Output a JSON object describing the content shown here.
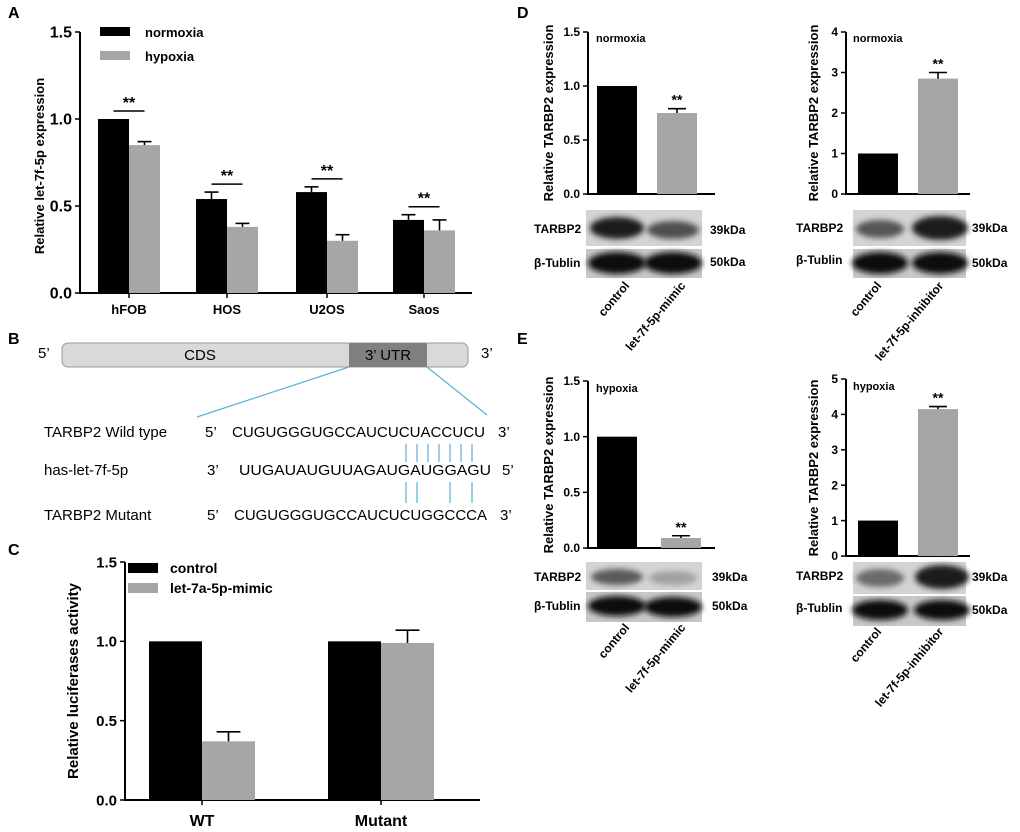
{
  "colors": {
    "black_bar": "#000000",
    "gray_bar": "#a6a6a6",
    "guide_line": "#5aaed8",
    "gene_bar": "#d9d9d9",
    "utr_bar": "#808080"
  },
  "panels": {
    "A": {
      "letter": "A",
      "legend": [
        "normoxia",
        "hypoxia"
      ]
    },
    "B": {
      "letter": "B",
      "five_prime": "5’",
      "three_prime": "3’",
      "cds_label": "CDS",
      "utr_label": "3’ UTR",
      "row1_label": "TARBP2 Wild type",
      "row1_5": "5’",
      "row1_seq": "CUGUGGGUGCCAUCUCUACCUCU",
      "row1_3": "3’",
      "row2_label": "has-let-7f-5p",
      "row2_3": "3’",
      "row2_seq": "UUGAUAUGUUAGAUGAUGGAGU",
      "row2_5": "5’",
      "row3_label": "TARBP2 Mutant",
      "row3_5": "5’",
      "row3_seq": "CUGUGGGUGCCAUCUCUGGCCCA",
      "row3_3": "3’"
    },
    "C": {
      "letter": "C",
      "legend": [
        "control",
        "let-7a-5p-mimic"
      ]
    },
    "D": {
      "letter": "D"
    },
    "E": {
      "letter": "E"
    }
  },
  "blot_labels": {
    "tarbp2": "TARBP2",
    "tublin": "β-Tublin",
    "kda39": "39kDa",
    "kda50": "50kDa"
  },
  "chart_data": [
    {
      "id": "A",
      "type": "bar",
      "ylabel": "Relative let-7f-5p expression",
      "ylim": [
        0,
        1.5
      ],
      "yticks": [
        "0.0",
        "0.5",
        "1.0",
        "1.5"
      ],
      "categories": [
        "hFOB",
        "HOS",
        "U2OS",
        "Saos"
      ],
      "series": [
        {
          "name": "normoxia",
          "values": [
            1.0,
            0.54,
            0.58,
            0.42
          ],
          "errors": [
            0,
            0.04,
            0.03,
            0.03
          ]
        },
        {
          "name": "hypoxia",
          "values": [
            0.85,
            0.38,
            0.3,
            0.36
          ],
          "errors": [
            0.02,
            0.02,
            0.035,
            0.06
          ]
        }
      ],
      "annotations": [
        "**",
        "**",
        "**",
        "**"
      ]
    },
    {
      "id": "C",
      "type": "bar",
      "ylabel": "Relative luciferases activity",
      "ylim": [
        0,
        1.5
      ],
      "yticks": [
        "0.0",
        "0.5",
        "1.0",
        "1.5"
      ],
      "categories": [
        "WT",
        "Mutant"
      ],
      "series": [
        {
          "name": "control",
          "values": [
            1.0,
            1.0
          ],
          "errors": [
            0,
            0
          ]
        },
        {
          "name": "let-7a-5p-mimic",
          "values": [
            0.37,
            0.99
          ],
          "errors": [
            0.06,
            0.08
          ]
        }
      ]
    },
    {
      "id": "D1",
      "type": "bar",
      "condition": "normoxia",
      "ylabel": "Relative TARBP2 expression",
      "ylim": [
        0,
        1.5
      ],
      "yticks": [
        "0.0",
        "0.5",
        "1.0",
        "1.5"
      ],
      "categories": [
        "control",
        "let-7f-5p-mimic"
      ],
      "values": [
        1.0,
        0.75
      ],
      "errors": [
        0,
        0.04
      ],
      "annotations": [
        "",
        "**"
      ]
    },
    {
      "id": "D2",
      "type": "bar",
      "condition": "normoxia",
      "ylabel": "Relative TARBP2 expression",
      "ylim": [
        0,
        4
      ],
      "yticks": [
        "0",
        "1",
        "2",
        "3",
        "4"
      ],
      "categories": [
        "control",
        "let-7f-5p-inhibitor"
      ],
      "values": [
        1.0,
        2.85
      ],
      "errors": [
        0,
        0.15
      ],
      "annotations": [
        "",
        "**"
      ]
    },
    {
      "id": "E1",
      "type": "bar",
      "condition": "hypoxia",
      "ylabel": "Relative TARBP2 expression",
      "ylim": [
        0,
        1.5
      ],
      "yticks": [
        "0.0",
        "0.5",
        "1.0",
        "1.5"
      ],
      "categories": [
        "control",
        "let-7f-5p-mimic"
      ],
      "values": [
        1.0,
        0.09
      ],
      "errors": [
        0,
        0.02
      ],
      "annotations": [
        "",
        "**"
      ]
    },
    {
      "id": "E2",
      "type": "bar",
      "condition": "hypoxia",
      "ylabel": "Relative TARBP2 expression",
      "ylim": [
        0,
        5
      ],
      "yticks": [
        "0",
        "1",
        "2",
        "3",
        "4",
        "5"
      ],
      "categories": [
        "control",
        "let-7f-5p-inhibitor"
      ],
      "values": [
        1.0,
        4.15
      ],
      "errors": [
        0,
        0.07
      ],
      "annotations": [
        "",
        "**"
      ]
    }
  ]
}
